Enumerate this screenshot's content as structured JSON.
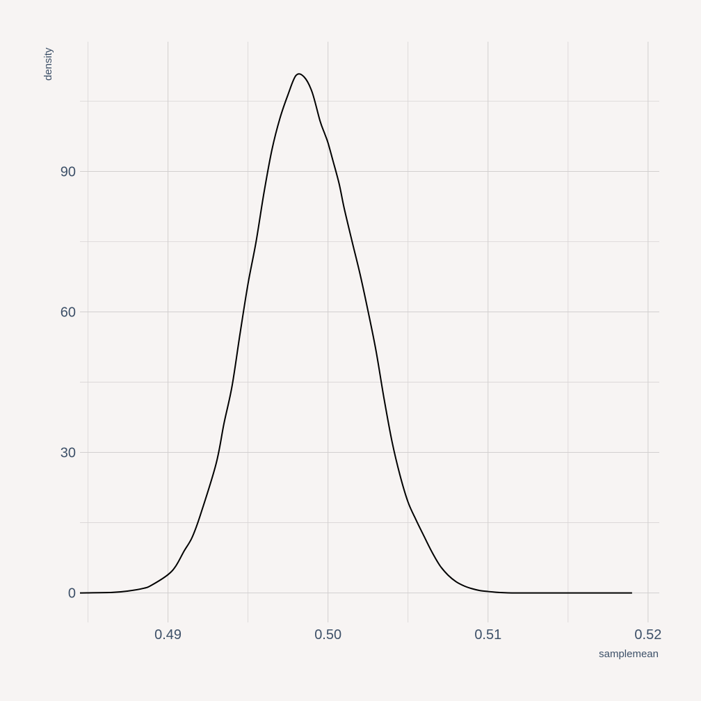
{
  "chart_data": {
    "type": "line",
    "title": "",
    "xlabel": "samplemean",
    "ylabel": "density",
    "xlim": [
      0.4845,
      0.5207
    ],
    "ylim": [
      -6.3,
      117.7
    ],
    "grid": true,
    "legend": "none",
    "x_ticks": [
      0.49,
      0.5,
      0.51,
      0.52
    ],
    "x_tick_labels": [
      "0.49",
      "0.50",
      "0.51",
      "0.52"
    ],
    "x_minor_ticks": [
      0.485,
      0.495,
      0.505,
      0.515
    ],
    "y_ticks": [
      0,
      30,
      60,
      90
    ],
    "y_tick_labels": [
      "0",
      "30",
      "60",
      "90"
    ],
    "y_minor_ticks": [
      15,
      45,
      75,
      105
    ],
    "colors": {
      "line": "#000000",
      "background": "#f7f4f3",
      "grid": "#d2cfcf",
      "text": "#3d5068"
    },
    "series": [
      {
        "x": [
          0.4845,
          0.4865,
          0.4875,
          0.4885,
          0.489,
          0.49,
          0.4905,
          0.491,
          0.4915,
          0.492,
          0.493,
          0.4935,
          0.494,
          0.4945,
          0.495,
          0.4955,
          0.496,
          0.4965,
          0.497,
          0.4975,
          0.498,
          0.4985,
          0.499,
          0.4995,
          0.4998,
          0.5,
          0.5003,
          0.5007,
          0.501,
          0.5015,
          0.502,
          0.5025,
          0.503,
          0.5035,
          0.504,
          0.5045,
          0.505,
          0.5055,
          0.506,
          0.5065,
          0.507,
          0.5075,
          0.508,
          0.5085,
          0.509,
          0.5095,
          0.51,
          0.5105,
          0.511,
          0.5115,
          0.512,
          0.5125,
          0.513,
          0.514,
          0.5155,
          0.519
        ],
        "y": [
          0,
          0.1,
          0.4,
          1.0,
          1.7,
          3.9,
          5.8,
          8.9,
          11.8,
          16.4,
          27.5,
          36.2,
          44.1,
          55.3,
          66.0,
          74.9,
          85.5,
          94.7,
          101.4,
          106.4,
          110.5,
          110.2,
          107.0,
          100.8,
          98.0,
          96.1,
          92.4,
          87.3,
          82.3,
          75.1,
          68.1,
          60.2,
          51.7,
          41.5,
          32.3,
          25.1,
          19.4,
          15.6,
          12.1,
          8.7,
          5.8,
          3.8,
          2.4,
          1.5,
          0.9,
          0.5,
          0.3,
          0.15,
          0.05,
          0,
          0,
          0,
          0,
          0,
          0,
          0
        ]
      }
    ]
  }
}
